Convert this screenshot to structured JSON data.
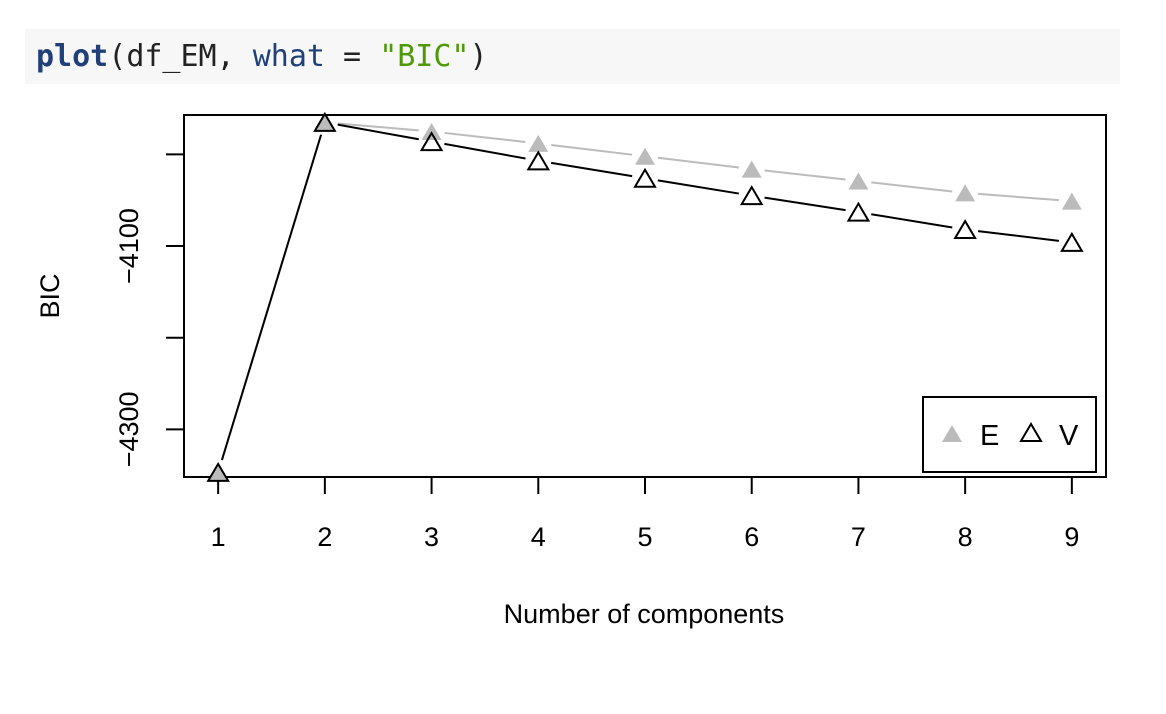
{
  "code": {
    "fn": "plot",
    "open": "(",
    "arg1": "df_EM",
    "comma": ", ",
    "argname": "what",
    "eq": " = ",
    "str": "\"BIC\"",
    "close": ")"
  },
  "chart_data": {
    "type": "line",
    "x": [
      1,
      2,
      3,
      4,
      5,
      6,
      7,
      8,
      9
    ],
    "xticks": [
      "1",
      "2",
      "3",
      "4",
      "5",
      "6",
      "7",
      "8",
      "9"
    ],
    "yticks": [
      {
        "value": -4100,
        "label": "−4100"
      },
      {
        "value": -4300,
        "label": "−4300"
      }
    ],
    "yminor": [
      -4000,
      -4200
    ],
    "xlabel": "Number of components",
    "ylabel": "BIC",
    "xlim": [
      0.68,
      9.32
    ],
    "ylim": [
      -4352,
      -3957
    ],
    "series": [
      {
        "name": "E",
        "color": "#bbbbbb",
        "marker": "filled-triangle",
        "values": [
          -4347,
          -3965,
          -3975,
          -3988,
          -4002,
          -4016,
          -4029,
          -4042,
          -4051
        ]
      },
      {
        "name": "V",
        "color": "#000000",
        "marker": "open-triangle",
        "values": [
          -4347,
          -3965,
          -3986,
          -4007,
          -4026,
          -4045,
          -4063,
          -4082,
          -4096
        ]
      }
    ],
    "legend_position": "bottom-right",
    "grid": false
  }
}
